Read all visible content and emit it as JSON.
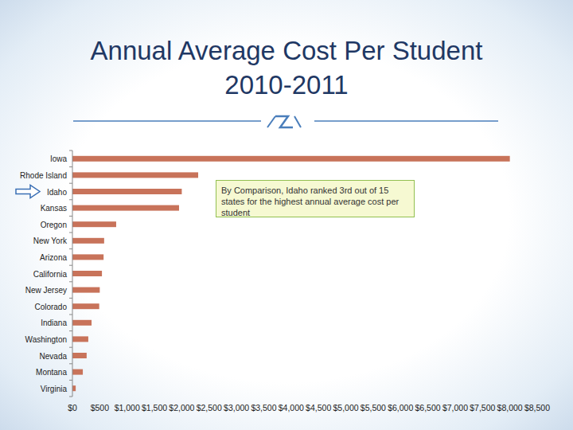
{
  "chart_data": {
    "type": "bar",
    "orientation": "horizontal",
    "title": "Annual Average Cost Per Student 2010-2011",
    "annotation": "By Comparison, Idaho ranked 3rd out of 15 states for the highest annual average cost per student",
    "categories": [
      "Iowa",
      "Rhode Island",
      "Idaho",
      "Kansas",
      "Oregon",
      "New York",
      "Arizona",
      "California",
      "New Jersey",
      "Colorado",
      "Indiana",
      "Washington",
      "Nevada",
      "Montana",
      "Virginia"
    ],
    "values": [
      8000,
      2300,
      2000,
      1950,
      800,
      580,
      570,
      540,
      500,
      490,
      350,
      290,
      260,
      190,
      60
    ],
    "color": "#c8735a",
    "xlim": [
      0,
      8500
    ],
    "xticks": [
      {
        "value": 0,
        "label": "$0"
      },
      {
        "value": 500,
        "label": "$500"
      },
      {
        "value": 1000,
        "label": "$1,000"
      },
      {
        "value": 1500,
        "label": "$1,500"
      },
      {
        "value": 2000,
        "label": "$2,000"
      },
      {
        "value": 2500,
        "label": "$2,500"
      },
      {
        "value": 3000,
        "label": "$3,000"
      },
      {
        "value": 3500,
        "label": "$3,500"
      },
      {
        "value": 4000,
        "label": "$4,000"
      },
      {
        "value": 4500,
        "label": "$4,500"
      },
      {
        "value": 5000,
        "label": "$5,000"
      },
      {
        "value": 5500,
        "label": "$5,500"
      },
      {
        "value": 6000,
        "label": "$6,000"
      },
      {
        "value": 6500,
        "label": "$6,500"
      },
      {
        "value": 7000,
        "label": "$7,000"
      },
      {
        "value": 7500,
        "label": "$7,500"
      },
      {
        "value": 8000,
        "label": "$8,000"
      },
      {
        "value": 8500,
        "label": "$8,500"
      }
    ],
    "grid": false
  }
}
